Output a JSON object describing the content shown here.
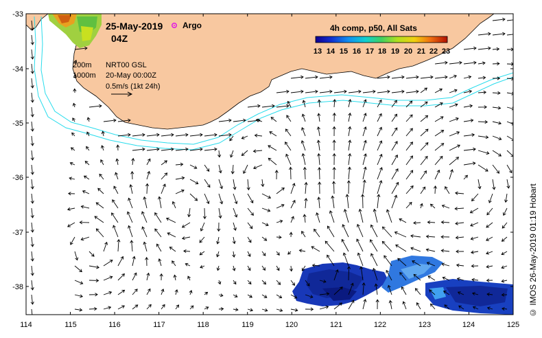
{
  "map": {
    "date": "25-May-2019",
    "time": "04Z",
    "argo_label": "Argo",
    "colorbar": {
      "title": "4h comp, p50, All Sats",
      "ticks": [
        "13",
        "14",
        "15",
        "16",
        "17",
        "18",
        "19",
        "20",
        "21",
        "22",
        "23"
      ],
      "min": 13,
      "max": 23
    },
    "legend": {
      "isobath_200": "200m",
      "isobath_1000": "1000m",
      "product": "NRT00 GSL",
      "product_date": "20-May 00:00Z",
      "scale": "0.5m/s (1kt 24h)"
    },
    "lon_ticks": [
      "114",
      "115",
      "116",
      "117",
      "118",
      "119",
      "120",
      "121",
      "122",
      "123",
      "124",
      "125"
    ],
    "lat_ticks": [
      "-33",
      "-34",
      "-35",
      "-36",
      "-37",
      "-38"
    ],
    "credit": "© IMOS 26-May-2019 01:19 Hobart",
    "colors": {
      "land": "#f8c8a0",
      "isobath": "#28dcec",
      "cold_sst": "#1838b8",
      "argo": "#e020e0"
    }
  }
}
